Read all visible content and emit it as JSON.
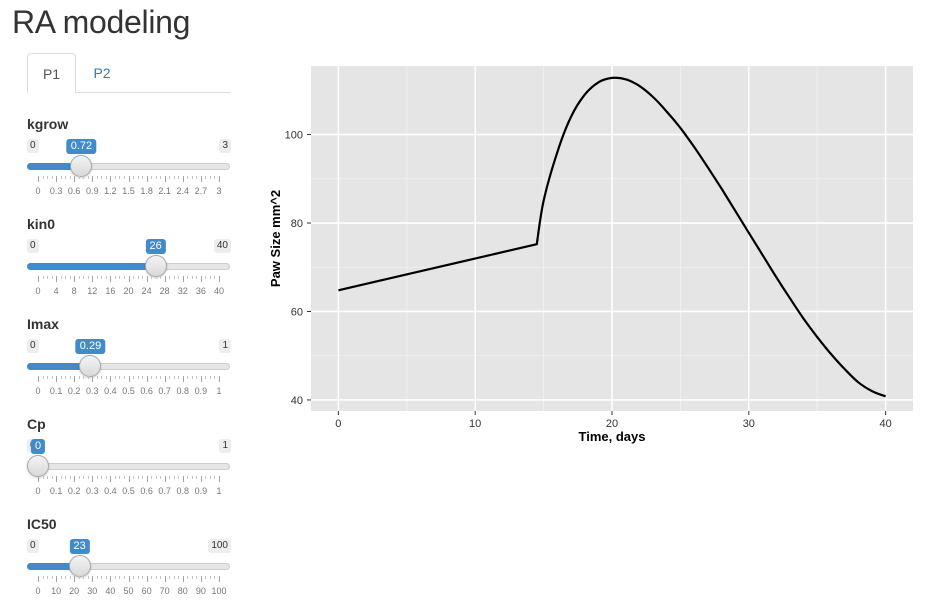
{
  "app": {
    "title": "RA modeling"
  },
  "tabs": [
    {
      "label": "P1",
      "active": true
    },
    {
      "label": "P2",
      "active": false
    }
  ],
  "colors": {
    "accent": "#428bca",
    "link": "#337ab7",
    "panel_bg": "#e5e5e5",
    "grid": "#ffffff",
    "line": "#000000"
  },
  "sliders": [
    {
      "id": "kgrow",
      "label": "kgrow",
      "min": 0,
      "max": 3,
      "value": 0.72,
      "min_label": "0",
      "max_label": "3",
      "value_label": "0.72",
      "ticks": [
        "0",
        "0.3",
        "0.6",
        "0.9",
        "1.2",
        "1.5",
        "1.8",
        "2.1",
        "2.4",
        "2.7",
        "3"
      ]
    },
    {
      "id": "kin0",
      "label": "kin0",
      "min": 0,
      "max": 40,
      "value": 26,
      "min_label": "0",
      "max_label": "40",
      "value_label": "26",
      "ticks": [
        "0",
        "4",
        "8",
        "12",
        "16",
        "20",
        "24",
        "28",
        "32",
        "36",
        "40"
      ]
    },
    {
      "id": "imax",
      "label": "Imax",
      "min": 0,
      "max": 1,
      "value": 0.29,
      "min_label": "0",
      "max_label": "1",
      "value_label": "0.29",
      "ticks": [
        "0",
        "0.1",
        "0.2",
        "0.3",
        "0.4",
        "0.5",
        "0.6",
        "0.7",
        "0.8",
        "0.9",
        "1"
      ]
    },
    {
      "id": "cp",
      "label": "Cp",
      "min": 0,
      "max": 1,
      "value": 0,
      "min_label": "0",
      "max_label": "1",
      "value_label": "0",
      "ticks": [
        "0",
        "0.1",
        "0.2",
        "0.3",
        "0.4",
        "0.5",
        "0.6",
        "0.7",
        "0.8",
        "0.9",
        "1"
      ]
    },
    {
      "id": "ic50",
      "label": "IC50",
      "min": 0,
      "max": 100,
      "value": 23,
      "min_label": "0",
      "max_label": "100",
      "value_label": "23",
      "ticks": [
        "0",
        "10",
        "20",
        "30",
        "40",
        "50",
        "60",
        "70",
        "80",
        "90",
        "100"
      ]
    }
  ],
  "chart_data": {
    "type": "line",
    "title": "",
    "xlabel": "Time, days",
    "ylabel": "Paw Size mm^2",
    "xlim": [
      -2,
      42
    ],
    "ylim": [
      37.5,
      115.5
    ],
    "xticks": [
      0,
      10,
      20,
      30,
      40
    ],
    "yticks": [
      40,
      60,
      80,
      100
    ],
    "grid": true,
    "series": [
      {
        "x": [
          0,
          14.5,
          15,
          16,
          17,
          18,
          19,
          20,
          21,
          22,
          23,
          24,
          25,
          26,
          27,
          28,
          29,
          30,
          31,
          32,
          33,
          34,
          35,
          36,
          37,
          38,
          39,
          40
        ],
        "y": [
          64.8,
          75.2,
          85.0,
          96.0,
          104.0,
          109.0,
          111.8,
          112.8,
          112.5,
          111.0,
          108.5,
          105.2,
          101.5,
          97.2,
          92.6,
          87.8,
          82.8,
          77.8,
          72.8,
          67.8,
          63.0,
          58.4,
          54.2,
          50.4,
          47.0,
          44.0,
          42.0,
          40.8
        ]
      }
    ]
  }
}
